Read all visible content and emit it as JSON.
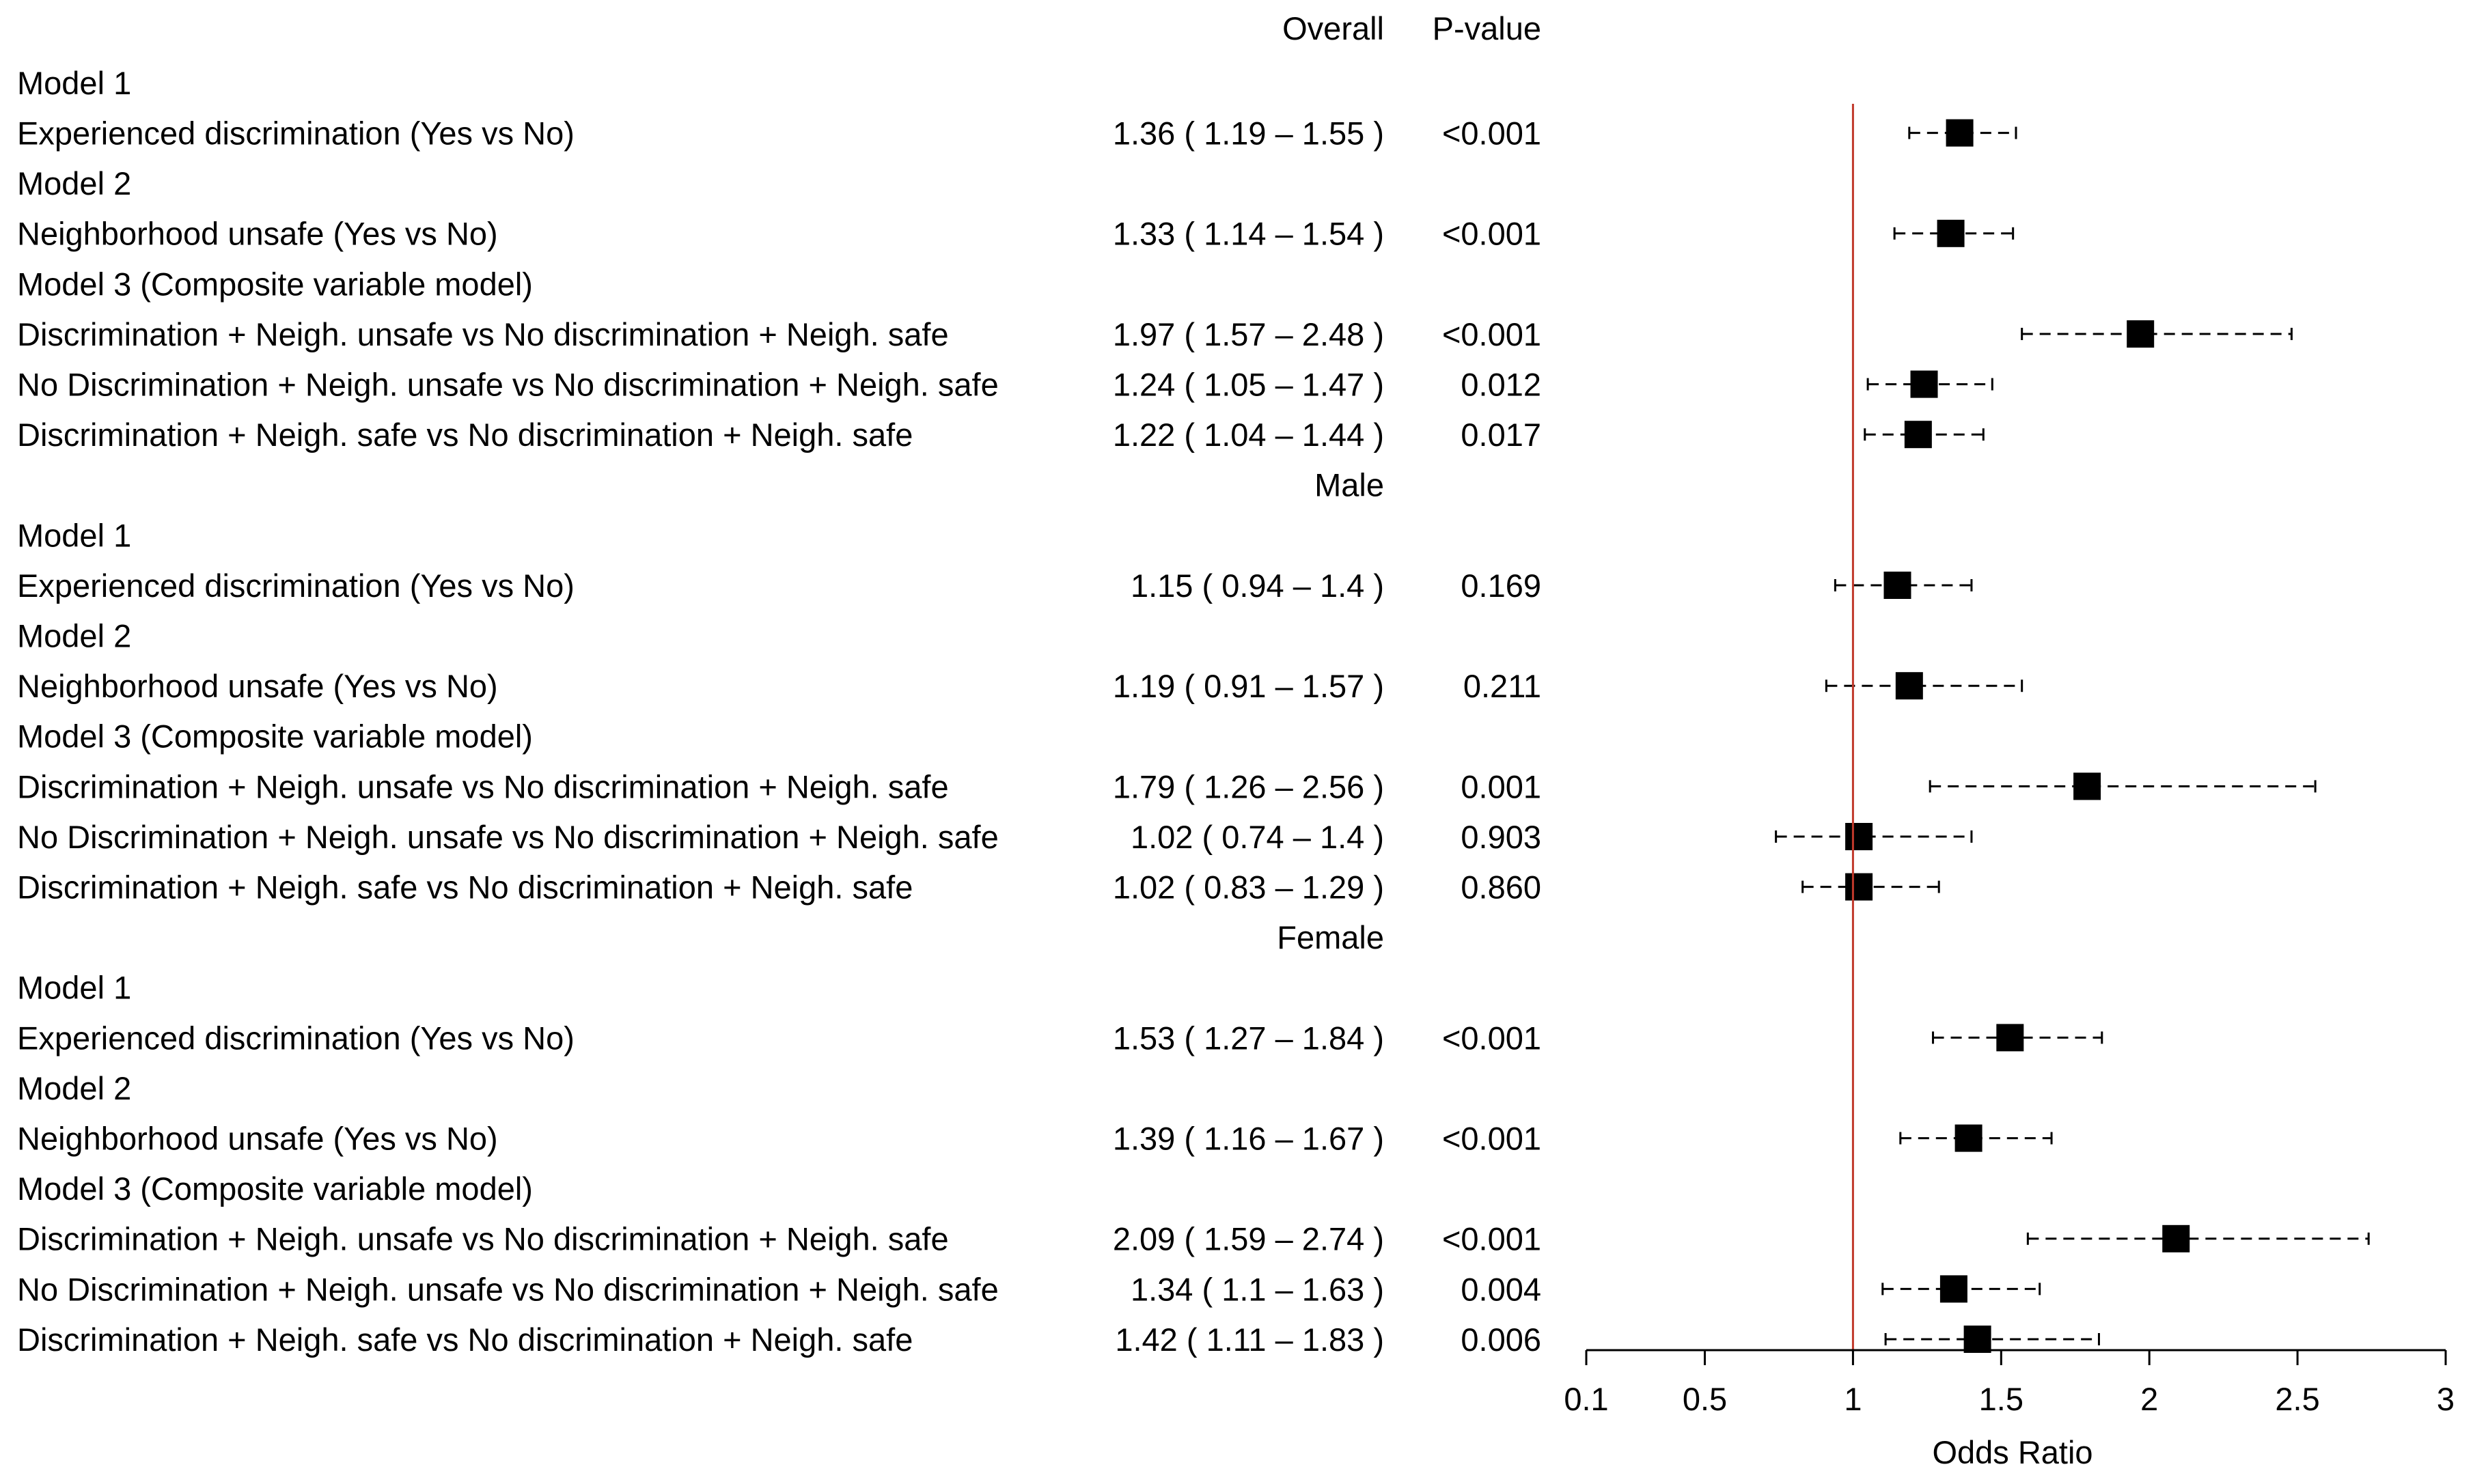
{
  "chart_data": {
    "type": "forest",
    "headers": {
      "estimate": "Overall",
      "pvalue": "P-value"
    },
    "xlabel": "Odds Ratio",
    "x_ticks": [
      {
        "label": "0.1",
        "value": 0.1
      },
      {
        "label": "0.5",
        "value": 0.5
      },
      {
        "label": "1",
        "value": 1
      },
      {
        "label": "1.5",
        "value": 1.5
      },
      {
        "label": "2",
        "value": 2
      },
      {
        "label": "2.5",
        "value": 2.5
      },
      {
        "label": "3",
        "value": 3
      }
    ],
    "reference_line": 1,
    "reference_color": "#c0392b",
    "marker_color": "#000000",
    "rows": [
      {
        "kind": "section",
        "text": "Overall",
        "silent": true
      },
      {
        "kind": "model",
        "text": "Model 1"
      },
      {
        "kind": "data",
        "label": "Experienced discrimination (Yes vs No)",
        "ci_text": "1.36 ( 1.19 – 1.55 )",
        "pvalue": "<0.001",
        "or": 1.36,
        "lo": 1.19,
        "hi": 1.55
      },
      {
        "kind": "model",
        "text": "Model 2"
      },
      {
        "kind": "data",
        "label": "Neighborhood unsafe (Yes vs No)",
        "ci_text": "1.33 ( 1.14 – 1.54 )",
        "pvalue": "<0.001",
        "or": 1.33,
        "lo": 1.14,
        "hi": 1.54
      },
      {
        "kind": "model",
        "text": "Model 3 (Composite variable model)"
      },
      {
        "kind": "data",
        "label": "Discrimination + Neigh. unsafe vs No discrimination + Neigh. safe",
        "ci_text": "1.97 ( 1.57 – 2.48 )",
        "pvalue": "<0.001",
        "or": 1.97,
        "lo": 1.57,
        "hi": 2.48
      },
      {
        "kind": "data",
        "label": "No Discrimination + Neigh. unsafe vs No discrimination + Neigh. safe",
        "ci_text": "1.24 ( 1.05 – 1.47 )",
        "pvalue": "0.012",
        "or": 1.24,
        "lo": 1.05,
        "hi": 1.47
      },
      {
        "kind": "data",
        "label": "Discrimination + Neigh. safe vs No discrimination + Neigh. safe",
        "ci_text": "1.22 ( 1.04 – 1.44 )",
        "pvalue": "0.017",
        "or": 1.22,
        "lo": 1.04,
        "hi": 1.44
      },
      {
        "kind": "section",
        "text": "Male"
      },
      {
        "kind": "model",
        "text": "Model 1"
      },
      {
        "kind": "data",
        "label": "Experienced discrimination (Yes vs No)",
        "ci_text": "1.15 ( 0.94 – 1.4 )",
        "pvalue": "0.169",
        "or": 1.15,
        "lo": 0.94,
        "hi": 1.4
      },
      {
        "kind": "model",
        "text": "Model 2"
      },
      {
        "kind": "data",
        "label": "Neighborhood unsafe (Yes vs No)",
        "ci_text": "1.19 ( 0.91 – 1.57 )",
        "pvalue": "0.211",
        "or": 1.19,
        "lo": 0.91,
        "hi": 1.57
      },
      {
        "kind": "model",
        "text": "Model 3 (Composite variable model)"
      },
      {
        "kind": "data",
        "label": "Discrimination + Neigh. unsafe vs No discrimination + Neigh. safe",
        "ci_text": "1.79 ( 1.26 – 2.56 )",
        "pvalue": "0.001",
        "or": 1.79,
        "lo": 1.26,
        "hi": 2.56
      },
      {
        "kind": "data",
        "label": "No Discrimination + Neigh. unsafe vs No discrimination + Neigh. safe",
        "ci_text": "1.02 ( 0.74 – 1.4 )",
        "pvalue": "0.903",
        "or": 1.02,
        "lo": 0.74,
        "hi": 1.4
      },
      {
        "kind": "data",
        "label": "Discrimination + Neigh. safe vs No discrimination + Neigh. safe",
        "ci_text": "1.02 ( 0.83 – 1.29 )",
        "pvalue": "0.860",
        "or": 1.02,
        "lo": 0.83,
        "hi": 1.29
      },
      {
        "kind": "section",
        "text": "Female"
      },
      {
        "kind": "model",
        "text": "Model 1"
      },
      {
        "kind": "data",
        "label": "Experienced discrimination (Yes vs No)",
        "ci_text": "1.53 ( 1.27 – 1.84 )",
        "pvalue": "<0.001",
        "or": 1.53,
        "lo": 1.27,
        "hi": 1.84
      },
      {
        "kind": "model",
        "text": "Model 2"
      },
      {
        "kind": "data",
        "label": "Neighborhood unsafe (Yes vs No)",
        "ci_text": "1.39 ( 1.16 – 1.67 )",
        "pvalue": "<0.001",
        "or": 1.39,
        "lo": 1.16,
        "hi": 1.67
      },
      {
        "kind": "model",
        "text": "Model 3 (Composite variable model)"
      },
      {
        "kind": "data",
        "label": "Discrimination + Neigh. unsafe vs No discrimination + Neigh. safe",
        "ci_text": "2.09 ( 1.59 – 2.74 )",
        "pvalue": "<0.001",
        "or": 2.09,
        "lo": 1.59,
        "hi": 2.74
      },
      {
        "kind": "data",
        "label": "No Discrimination + Neigh. unsafe vs No discrimination + Neigh. safe",
        "ci_text": "1.34 ( 1.1 – 1.63 )",
        "pvalue": "0.004",
        "or": 1.34,
        "lo": 1.1,
        "hi": 1.63
      },
      {
        "kind": "data",
        "label": "Discrimination + Neigh. safe vs No discrimination + Neigh. safe",
        "ci_text": "1.42 ( 1.11 – 1.83 )",
        "pvalue": "0.006",
        "or": 1.42,
        "lo": 1.11,
        "hi": 1.83
      }
    ]
  }
}
